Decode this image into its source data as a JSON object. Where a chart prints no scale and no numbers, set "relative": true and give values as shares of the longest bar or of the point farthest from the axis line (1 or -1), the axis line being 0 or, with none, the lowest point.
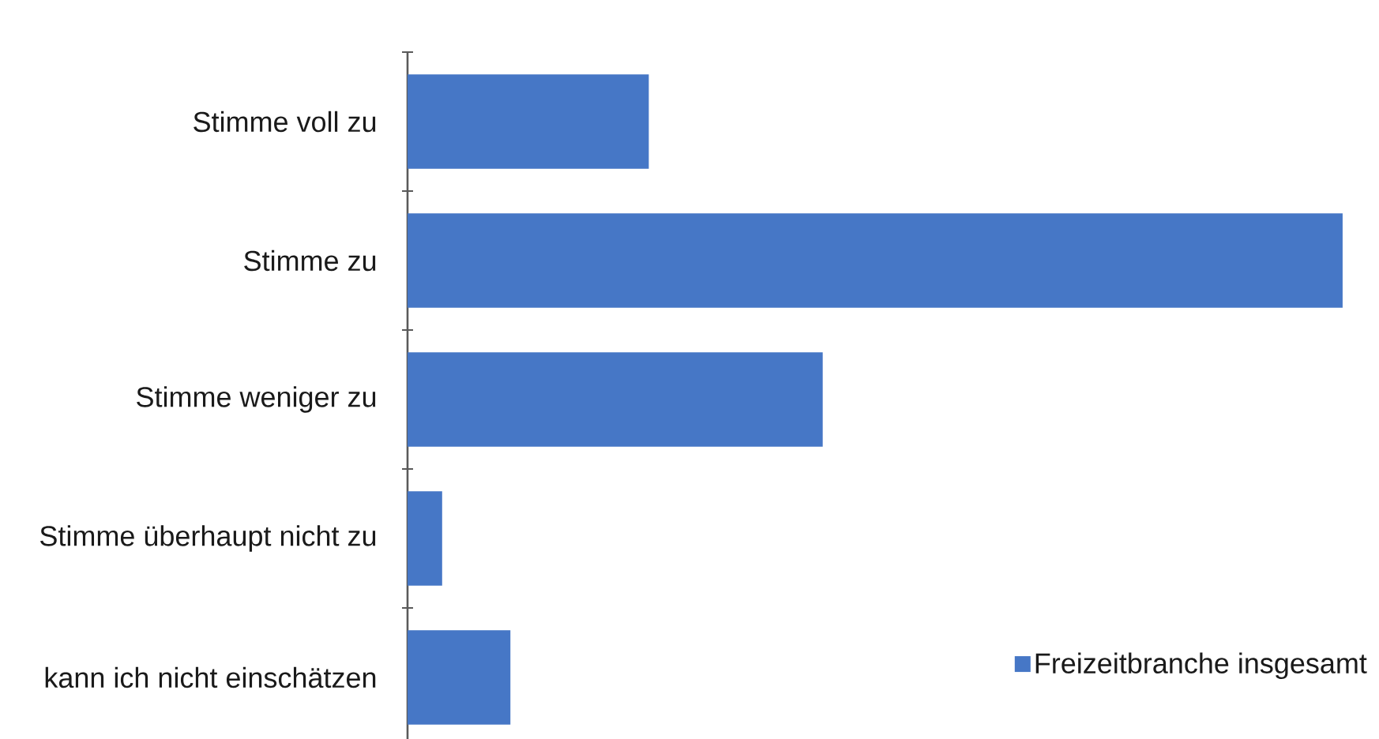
{
  "chart_data": {
    "type": "bar",
    "orientation": "horizontal",
    "relative": true,
    "categories": [
      "Stimme voll zu",
      "Stimme zu",
      "Stimme weniger zu",
      "Stimme überhaupt nicht zu",
      "kann ich nicht einschätzen"
    ],
    "series": [
      {
        "name": "Freizeitbranche insgesamt",
        "color": "#4677c6",
        "values": [
          0.258,
          1,
          0.444,
          0.037,
          0.11
        ]
      }
    ],
    "legend": "bottom right"
  }
}
